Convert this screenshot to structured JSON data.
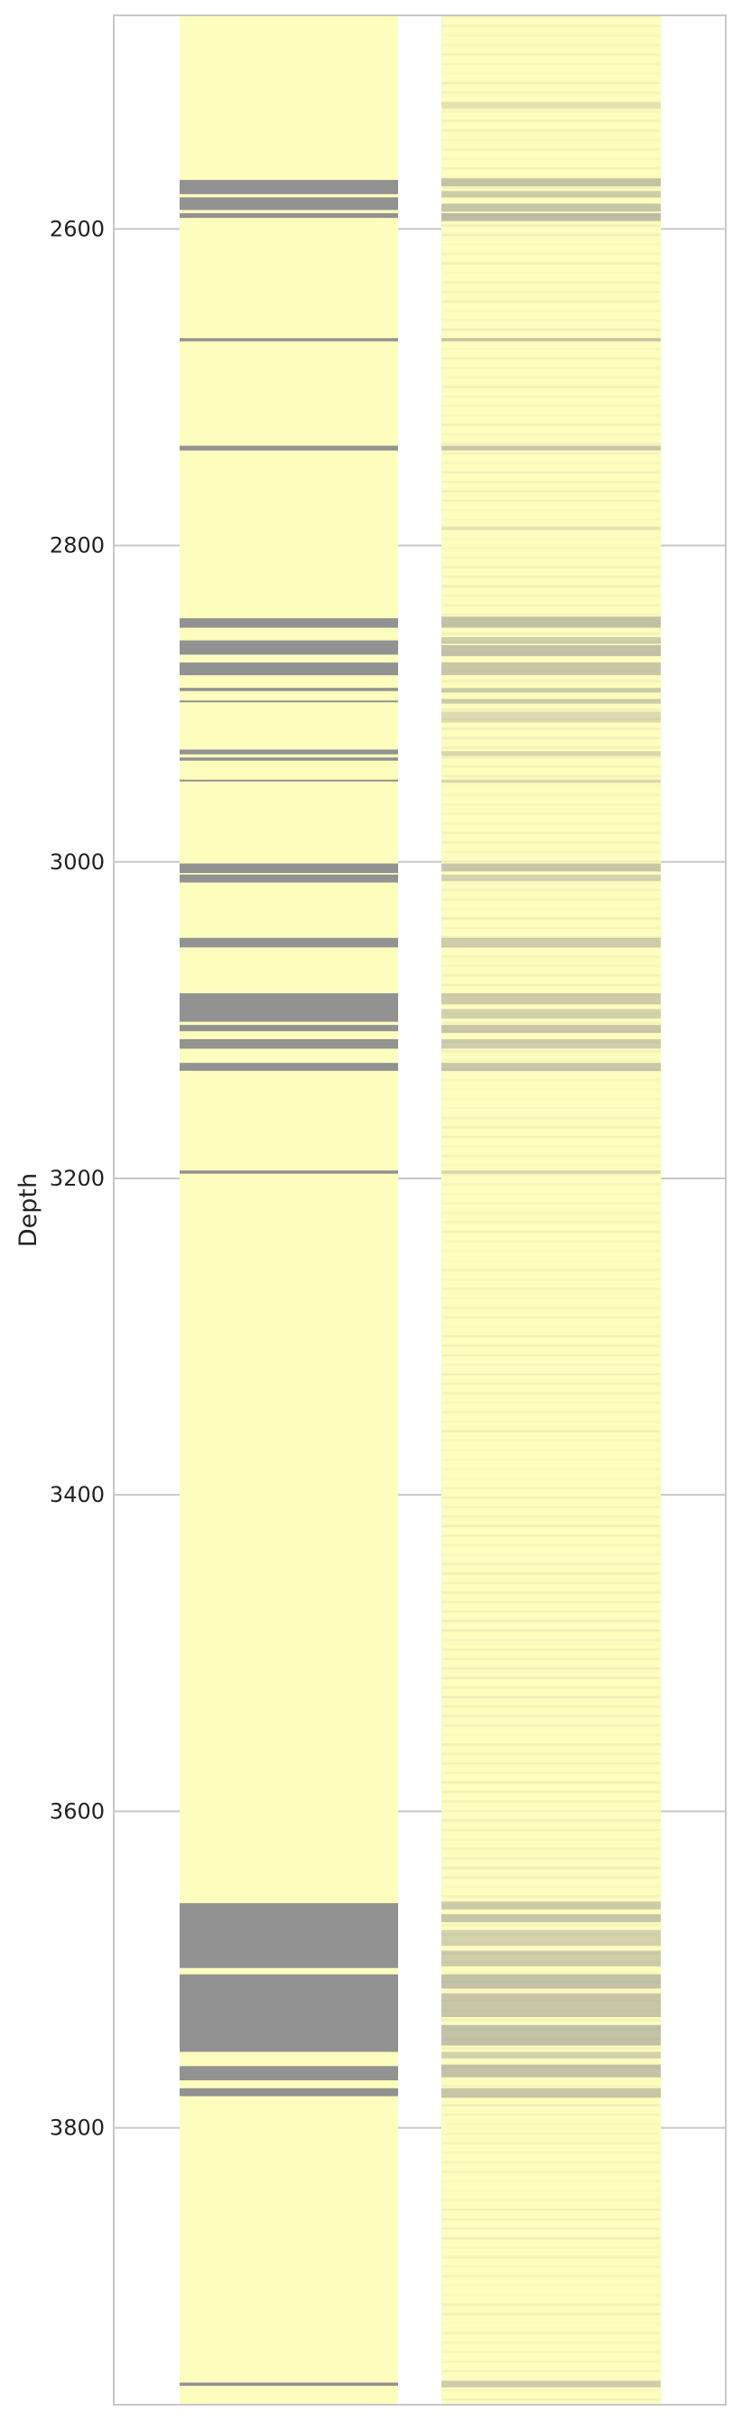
{
  "chart_data": {
    "type": "heatmap",
    "title": "",
    "ylabel": "Depth",
    "xlabel": "",
    "ylim": [
      3975,
      2465
    ],
    "y_ticks": [
      "2600",
      "2800",
      "3000",
      "3200",
      "3400",
      "3600",
      "3800"
    ],
    "grid": "horizontal",
    "legend": "none",
    "colors": {
      "sand": "#fdfdbe",
      "shale": "#929292",
      "gridline": "#c8c8c8",
      "frame": "#c8c8c8",
      "background": "#ffffff"
    },
    "tracks": [
      {
        "track": 1,
        "depth_range": [
          2465,
          3975
        ],
        "shale_intervals": [
          [
            2569,
            2578
          ],
          [
            2580,
            2588
          ],
          [
            2590,
            2593
          ],
          [
            2669,
            2671
          ],
          [
            2737,
            2740
          ],
          [
            2846,
            2852
          ],
          [
            2860,
            2869
          ],
          [
            2874,
            2882
          ],
          [
            2890,
            2892
          ],
          [
            2898,
            2899
          ],
          [
            2929,
            2932
          ],
          [
            2934,
            2936
          ],
          [
            2948,
            2949
          ],
          [
            3001,
            3007
          ],
          [
            3008,
            3013
          ],
          [
            3048,
            3054
          ],
          [
            3083,
            3101
          ],
          [
            3103,
            3107
          ],
          [
            3112,
            3118
          ],
          [
            3127,
            3132
          ],
          [
            3195,
            3197
          ],
          [
            3658,
            3699
          ],
          [
            3703,
            3752
          ],
          [
            3761,
            3770
          ],
          [
            3775,
            3780
          ],
          [
            3961,
            3963
          ]
        ]
      },
      {
        "track": 2,
        "depth_range": [
          2465,
          3975
        ],
        "graded": true,
        "shale_intervals": [
          [
            2520,
            2524,
            0.25
          ],
          [
            2568,
            2573,
            0.55
          ],
          [
            2576,
            2580,
            0.45
          ],
          [
            2584,
            2589,
            0.5
          ],
          [
            2590,
            2595,
            0.6
          ],
          [
            2669,
            2671,
            0.5
          ],
          [
            2737,
            2740,
            0.5
          ],
          [
            2788,
            2790,
            0.2
          ],
          [
            2845,
            2852,
            0.55
          ],
          [
            2858,
            2862,
            0.45
          ],
          [
            2863,
            2870,
            0.55
          ],
          [
            2874,
            2882,
            0.5
          ],
          [
            2890,
            2893,
            0.45
          ],
          [
            2897,
            2900,
            0.45
          ],
          [
            2905,
            2912,
            0.3
          ],
          [
            2930,
            2933,
            0.35
          ],
          [
            2948,
            2950,
            0.35
          ],
          [
            3001,
            3006,
            0.5
          ],
          [
            3008,
            3012,
            0.4
          ],
          [
            3048,
            3054,
            0.45
          ],
          [
            3083,
            3090,
            0.45
          ],
          [
            3093,
            3099,
            0.4
          ],
          [
            3103,
            3108,
            0.5
          ],
          [
            3112,
            3118,
            0.45
          ],
          [
            3127,
            3132,
            0.5
          ],
          [
            3195,
            3197,
            0.35
          ],
          [
            3657,
            3662,
            0.45
          ],
          [
            3665,
            3670,
            0.5
          ],
          [
            3675,
            3685,
            0.4
          ],
          [
            3688,
            3698,
            0.45
          ],
          [
            3703,
            3712,
            0.55
          ],
          [
            3715,
            3730,
            0.5
          ],
          [
            3735,
            3748,
            0.55
          ],
          [
            3752,
            3756,
            0.4
          ],
          [
            3760,
            3768,
            0.55
          ],
          [
            3775,
            3781,
            0.5
          ],
          [
            3960,
            3964,
            0.45
          ]
        ]
      }
    ]
  }
}
